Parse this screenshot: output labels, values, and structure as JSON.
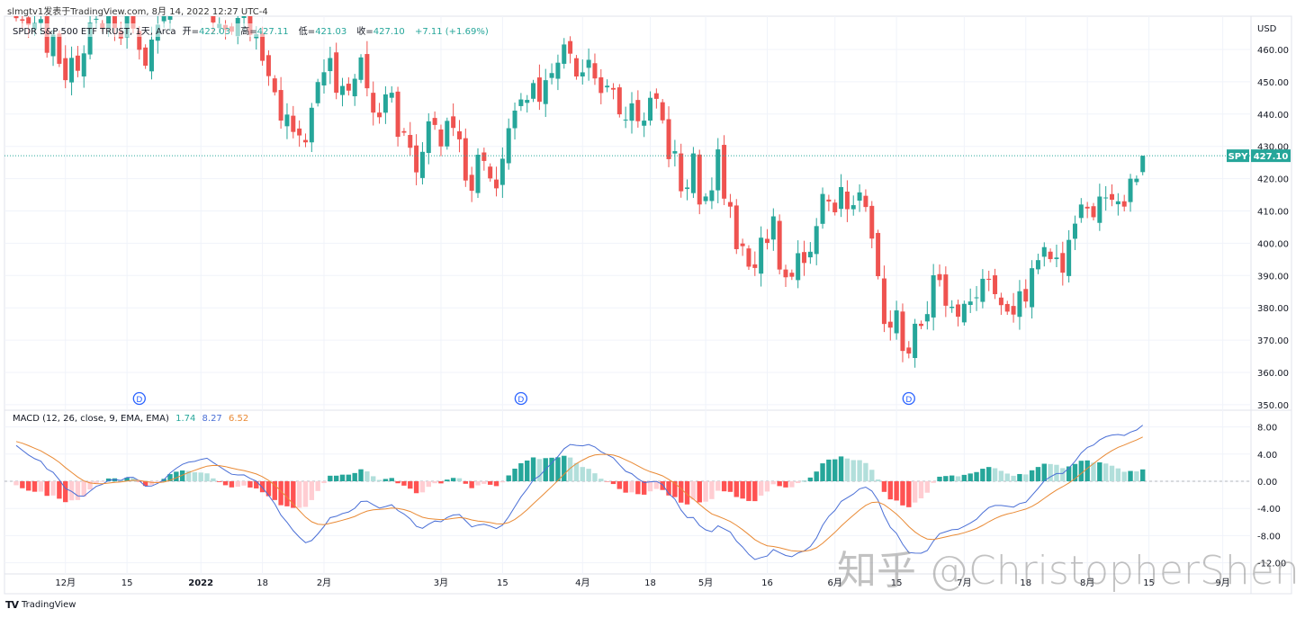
{
  "attribution": "slmgtv1发表于TradingView.com, 8月 14, 2022 12:27 UTC-4",
  "legend": {
    "symbol": "SPDR S&P 500 ETF TRUST, 1天, Arca",
    "open_label": "开=",
    "open": "422.03",
    "high_label": "高=",
    "high": "427.11",
    "low_label": "低=",
    "low": "421.03",
    "close_label": "收=",
    "close": "427.10",
    "change": "+7.11 (+1.69%)"
  },
  "currency": "USD",
  "price_tag": {
    "symbol": "SPY",
    "value": "427.10"
  },
  "macd_legend": {
    "label": "MACD (12, 26, close, 9, EMA, EMA)",
    "hist": "1.74",
    "macd": "8.27",
    "signal": "6.52"
  },
  "footer": {
    "logo": "TV",
    "brand": "TradingView"
  },
  "watermark": "知乎 @ChristopherShen",
  "colors": {
    "up": "#26a69a",
    "down": "#ef5350",
    "hist_up_strong": "#26a69a",
    "hist_up_weak": "#b2dfdb",
    "hist_down_strong": "#ff5252",
    "hist_down_weak": "#ffcdd2",
    "macd": "#4a6fd6",
    "signal": "#e98a35",
    "dividend": "#2962ff"
  },
  "chart_data": {
    "type": "candlestick",
    "symbol": "SPY",
    "start_date": "2021-11-18",
    "close": [
      469.7,
      468.9,
      467.6,
      468.2,
      469.4,
      458.97,
      464.6,
      455.56,
      450.5,
      457.4,
      453.4,
      458.8,
      468.3,
      469.5,
      466.4,
      470.7,
      466.6,
      463.4,
      470.6,
      466.45,
      459.9,
      454.98,
      463.06,
      467.69,
      470.6,
      477.26,
      476.87,
      477.48,
      476.16,
      474.96,
      477.71,
      477.55,
      468.38,
      467.94,
      466.09,
      465.51,
      469.75,
      471.02,
      464.53,
      464.72,
      456.49,
      451.75,
      446.75,
      437.98,
      439.84,
      434.47,
      433.38,
      431.24,
      441.95,
      449.91,
      452.95,
      457.35,
      446.6,
      448.7,
      447.26,
      450.94,
      457.54,
      447.99,
      440.46,
      439.02,
      446.1,
      446.6,
      432.96,
      434.23,
      429.57,
      421.95,
      428.3,
      437.75,
      436.63,
      429.98,
      437.89,
      435.71,
      432.17,
      419.43,
      416.25,
      427.41,
      425.48,
      420.07,
      417.0,
      426.17,
      435.62,
      441.07,
      444.52,
      444.39,
      449.59,
      443.8,
      450.49,
      452.69,
      455.91,
      461.55,
      458.7,
      451.64,
      452.92,
      456.8,
      451.03,
      446.52,
      448.77,
      447.57,
      439.92,
      438.29,
      443.31,
      437.79,
      437.97,
      445.04,
      444.71,
      438.06,
      426.04,
      428.51,
      416.1,
      417.27,
      427.81,
      412.0,
      414.48,
      416.38,
      429.06,
      413.81,
      411.34,
      398.17,
      399.09,
      392.75,
      392.34,
      401.72,
      400.09,
      408.32,
      391.86,
      389.46,
      389.63,
      396.92,
      393.89,
      397.37,
      405.31,
      415.26,
      412.93,
      409.59,
      417.39,
      410.54,
      411.79,
      415.74,
      411.22,
      401.44,
      389.8,
      375.0,
      373.87,
      379.2,
      366.65,
      365.86,
      375.07,
      374.39,
      378.06,
      390.08,
      388.59,
      380.65,
      380.34,
      377.25,
      381.24,
      381.96,
      383.25,
      388.99,
      388.67,
      384.23,
      380.83,
      378.83,
      377.91,
      385.13,
      381.95,
      392.27,
      394.77,
      398.79,
      395.09,
      395.57,
      390.89,
      401.04,
      406.07,
      411.99,
      410.77,
      408.06,
      414.45,
      414.17,
      413.47,
      412.99,
      411.35,
      419.99,
      419.99,
      427.1
    ],
    "last_bar": {
      "open": 422.03,
      "high": 427.11,
      "low": 421.03,
      "close": 427.1
    },
    "price_axis": {
      "ticks": [
        "460.00",
        "450.00",
        "440.00",
        "430.00",
        "420.00",
        "410.00",
        "400.00",
        "390.00",
        "380.00",
        "370.00",
        "360.00",
        "350.00"
      ],
      "range": [
        350,
        471
      ]
    },
    "time_axis": [
      {
        "label": "12月",
        "bar": 8
      },
      {
        "label": "15",
        "bar": 18
      },
      {
        "label": "2022",
        "bar": 30,
        "bold": true
      },
      {
        "label": "18",
        "bar": 40
      },
      {
        "label": "2月",
        "bar": 50
      },
      {
        "label": "3月",
        "bar": 69
      },
      {
        "label": "15",
        "bar": 79
      },
      {
        "label": "4月",
        "bar": 92
      },
      {
        "label": "18",
        "bar": 103
      },
      {
        "label": "5月",
        "bar": 112
      },
      {
        "label": "16",
        "bar": 122
      },
      {
        "label": "6月",
        "bar": 133
      },
      {
        "label": "15",
        "bar": 143
      },
      {
        "label": "7月",
        "bar": 154
      },
      {
        "label": "18",
        "bar": 164
      },
      {
        "label": "8月",
        "bar": 174
      },
      {
        "label": "15",
        "bar": 184
      },
      {
        "label": "9月",
        "bar": 196
      }
    ],
    "dividends": [
      {
        "label": "D",
        "bar": 20,
        "date": "2021-12-17"
      },
      {
        "label": "D",
        "bar": 82,
        "date": "2022-03-18"
      },
      {
        "label": "D",
        "bar": 145,
        "date": "2022-06-17"
      }
    ],
    "macd": {
      "fast": 12,
      "slow": 26,
      "signal": 9,
      "initial_macd": 6.0,
      "initial_signal": 6.0,
      "axis_ticks": [
        "8.00",
        "4.00",
        "0.00",
        "-4.00",
        "-8.00",
        "-12.00"
      ],
      "range": [
        -13.5,
        10
      ]
    }
  }
}
